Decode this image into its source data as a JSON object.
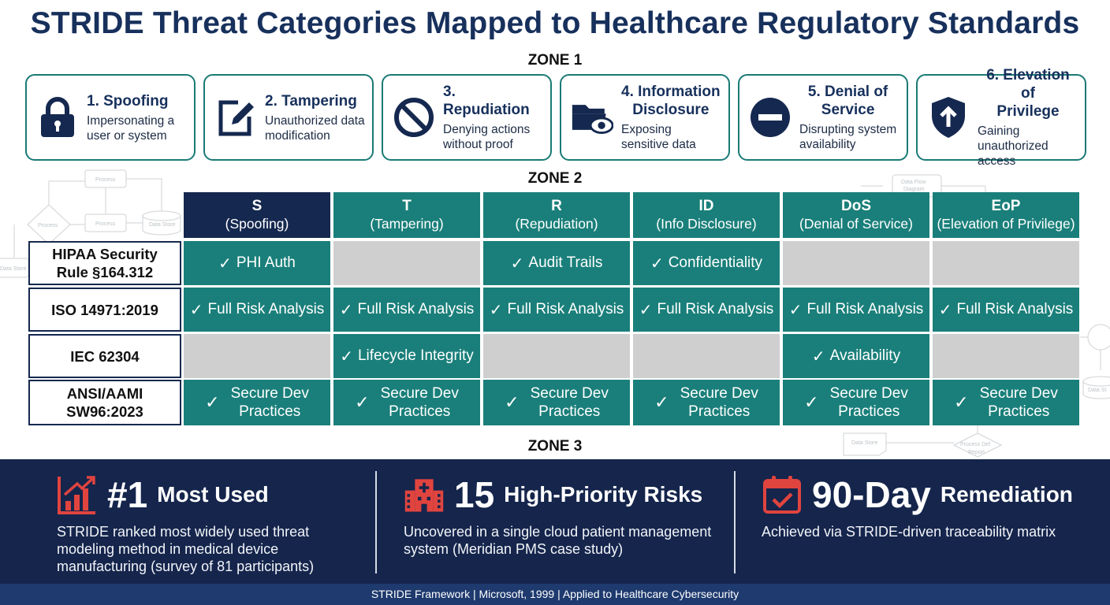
{
  "title": "STRIDE Threat Categories Mapped to Healthcare Regulatory Standards",
  "zones": {
    "zone1": "ZONE 1",
    "zone2": "ZONE 2",
    "zone3": "ZONE 3"
  },
  "cards": [
    {
      "title": "1. Spoofing",
      "desc_l1": "Impersonating a",
      "desc_l2": "user or system",
      "icon": "lock-icon"
    },
    {
      "title": "2. Tampering",
      "desc_l1": "Unauthorized data",
      "desc_l2": "modification",
      "icon": "edit-icon"
    },
    {
      "title": "3. Repudiation",
      "desc_l1": "Denying actions",
      "desc_l2": "without proof",
      "icon": "prohibited-icon"
    },
    {
      "title_l1": "4. Information",
      "title_l2": "Disclosure",
      "desc_l1": "Exposing",
      "desc_l2": "sensitive data",
      "icon": "folder-eye-icon"
    },
    {
      "title_l1": "5. Denial of",
      "title_l2": "Service",
      "desc_l1": "Disrupting system",
      "desc_l2": "availability",
      "icon": "minus-circle-icon"
    },
    {
      "title_l1": "6. Elevation of",
      "title_l2": "Privilege",
      "desc_l1": "Gaining",
      "desc_l2": "unauthorized access",
      "icon": "shield-arrow-icon"
    }
  ],
  "matrix": {
    "headers": [
      {
        "key": "S",
        "name": "(Spoofing)"
      },
      {
        "key": "T",
        "name": "(Tampering)"
      },
      {
        "key": "R",
        "name": "(Repudiation)"
      },
      {
        "key": "ID",
        "name": "(Info Disclosure)"
      },
      {
        "key": "DoS",
        "name": "(Denial of Service)"
      },
      {
        "key": "EoP",
        "name": "(Elevation of Privilege)"
      }
    ],
    "check": "✓",
    "rows": [
      {
        "label_l1": "HIPAA Security",
        "label_l2": "Rule §164.312",
        "cells": [
          "PHI Auth",
          "",
          "Audit Trails",
          "Confidentiality",
          "",
          ""
        ]
      },
      {
        "label_l1": "ISO 14971:2019",
        "label_l2": "",
        "cells": [
          "Full Risk Analysis",
          "Full Risk Analysis",
          "Full Risk Analysis",
          "Full Risk Analysis",
          "Full Risk Analysis",
          "Full Risk Analysis"
        ]
      },
      {
        "label_l1": "IEC 62304",
        "label_l2": "",
        "cells": [
          "",
          "Lifecycle Integrity",
          "",
          "",
          "Availability",
          ""
        ]
      },
      {
        "label_l1": "ANSI/AAMI",
        "label_l2": "SW96:2023",
        "cells_l1": [
          "Secure Dev",
          "Secure Dev",
          "Secure Dev",
          "Secure Dev",
          "Secure Dev",
          "Secure Dev"
        ],
        "cells_l2": [
          "Practices",
          "Practices",
          "Practices",
          "Practices",
          "Practices",
          "Practices"
        ]
      }
    ]
  },
  "stats": [
    {
      "num": "#1",
      "label": "Most Used",
      "icon": "bar-chart-up-icon",
      "desc": [
        "STRIDE ranked most widely used threat",
        "modeling method in medical device",
        "manufacturing (survey of 81 participants)"
      ]
    },
    {
      "num": "15",
      "label": "High-Priority Risks",
      "icon": "hospital-icon",
      "desc": [
        "Uncovered in a single cloud patient management",
        "system (Meridian PMS case study)"
      ]
    },
    {
      "num": "90-Day",
      "label": "Remediation",
      "icon": "calendar-check-icon",
      "desc": [
        "Achieved via STRIDE-driven traceability matrix"
      ]
    }
  ],
  "footer": "STRIDE Framework | Microsoft, 1999 | Applied to Healthcare Cybersecurity",
  "background_diagram": {
    "left": [
      "Process",
      "Process",
      "Process",
      "Data Store",
      "Data Store"
    ],
    "right": [
      "Data Flow",
      "Diagram",
      "Data St",
      "Data Store",
      "Process Def",
      "Report"
    ]
  },
  "colors": {
    "navy": "#15284f",
    "teal": "#1a7f7a",
    "gray": "#cfcfcf",
    "accent_red": "#e0443f"
  }
}
